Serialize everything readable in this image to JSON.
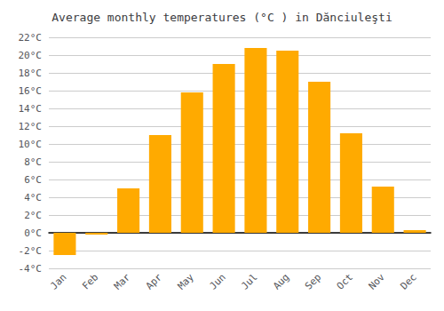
{
  "chart_data": {
    "type": "bar",
    "title": "Average monthly temperatures (°C ) in Dănciuleşti",
    "categories": [
      "Jan",
      "Feb",
      "Mar",
      "Apr",
      "May",
      "Jun",
      "Jul",
      "Aug",
      "Sep",
      "Oct",
      "Nov",
      "Dec"
    ],
    "values": [
      -2.5,
      -0.2,
      5.0,
      11.0,
      15.8,
      19.0,
      20.8,
      20.5,
      17.0,
      11.2,
      5.2,
      0.3
    ],
    "color": "#FFAA00",
    "ylim": [
      -4,
      22
    ],
    "yticks": [
      {
        "value": -4,
        "label": "-4°C"
      },
      {
        "value": -2,
        "label": "-2°C"
      },
      {
        "value": 0,
        "label": "0°C"
      },
      {
        "value": 2,
        "label": "2°C"
      },
      {
        "value": 4,
        "label": "4°C"
      },
      {
        "value": 6,
        "label": "6°C"
      },
      {
        "value": 8,
        "label": "8°C"
      },
      {
        "value": 10,
        "label": "10°C"
      },
      {
        "value": 12,
        "label": "12°C"
      },
      {
        "value": 14,
        "label": "14°C"
      },
      {
        "value": 16,
        "label": "16°C"
      },
      {
        "value": 18,
        "label": "18°C"
      },
      {
        "value": 20,
        "label": "20°C"
      },
      {
        "value": 22,
        "label": "22°C"
      }
    ],
    "grid": true
  }
}
